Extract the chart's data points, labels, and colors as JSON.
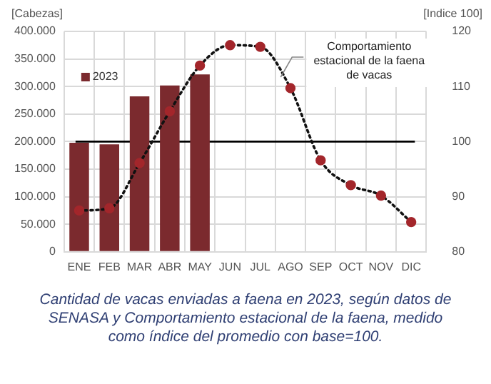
{
  "chart_data": {
    "type": "bar",
    "ylabel": "[Cabezas]",
    "y2label": "[Indice 100]",
    "categories": [
      "ENE",
      "FEB",
      "MAR",
      "ABR",
      "MAY",
      "JUN",
      "JUL",
      "AGO",
      "SEP",
      "OCT",
      "NOV",
      "DIC"
    ],
    "series": [
      {
        "name": "2023",
        "color": "#7b2a2e",
        "values": [
          198000,
          195000,
          282000,
          302000,
          322000,
          null,
          null,
          null,
          null,
          null,
          null,
          null
        ]
      },
      {
        "type": "line",
        "axis": "y2",
        "color": "#a3262b",
        "marker": "circle",
        "line_style": "dotted",
        "values": [
          87.5,
          87.9,
          96.1,
          105.5,
          113.8,
          117.5,
          117.2,
          109.7,
          96.6,
          92.1,
          90.2,
          85.4
        ]
      }
    ],
    "ylim": [
      0,
      400000
    ],
    "yticks": [
      0,
      {
        "value": 50000,
        "label": "50.000"
      },
      {
        "value": 100000,
        "label": "100.000"
      },
      {
        "value": 150000,
        "label": "150.000"
      },
      {
        "value": 200000,
        "label": "200.000"
      },
      {
        "value": 250000,
        "label": "250.000"
      },
      {
        "value": 300000,
        "label": "300.000"
      },
      {
        "value": 350000,
        "label": "350.000"
      },
      {
        "value": 400000,
        "label": "400.000"
      }
    ],
    "y2lim": [
      80,
      120
    ],
    "y2ticks": [
      80,
      90,
      100,
      110,
      120
    ],
    "ref_lines": [
      {
        "axis": "y2",
        "value": 100,
        "color": "#000000"
      }
    ],
    "grid": true,
    "legend": "top left",
    "annotations": [
      "Comportamiento estacional de la faena de vacas",
      "Cantidad de vacas enviadas a faena en 2023, según datos de SENASA y Comportamiento estacional de la faena, medido como índice del promedio con base=100."
    ]
  }
}
